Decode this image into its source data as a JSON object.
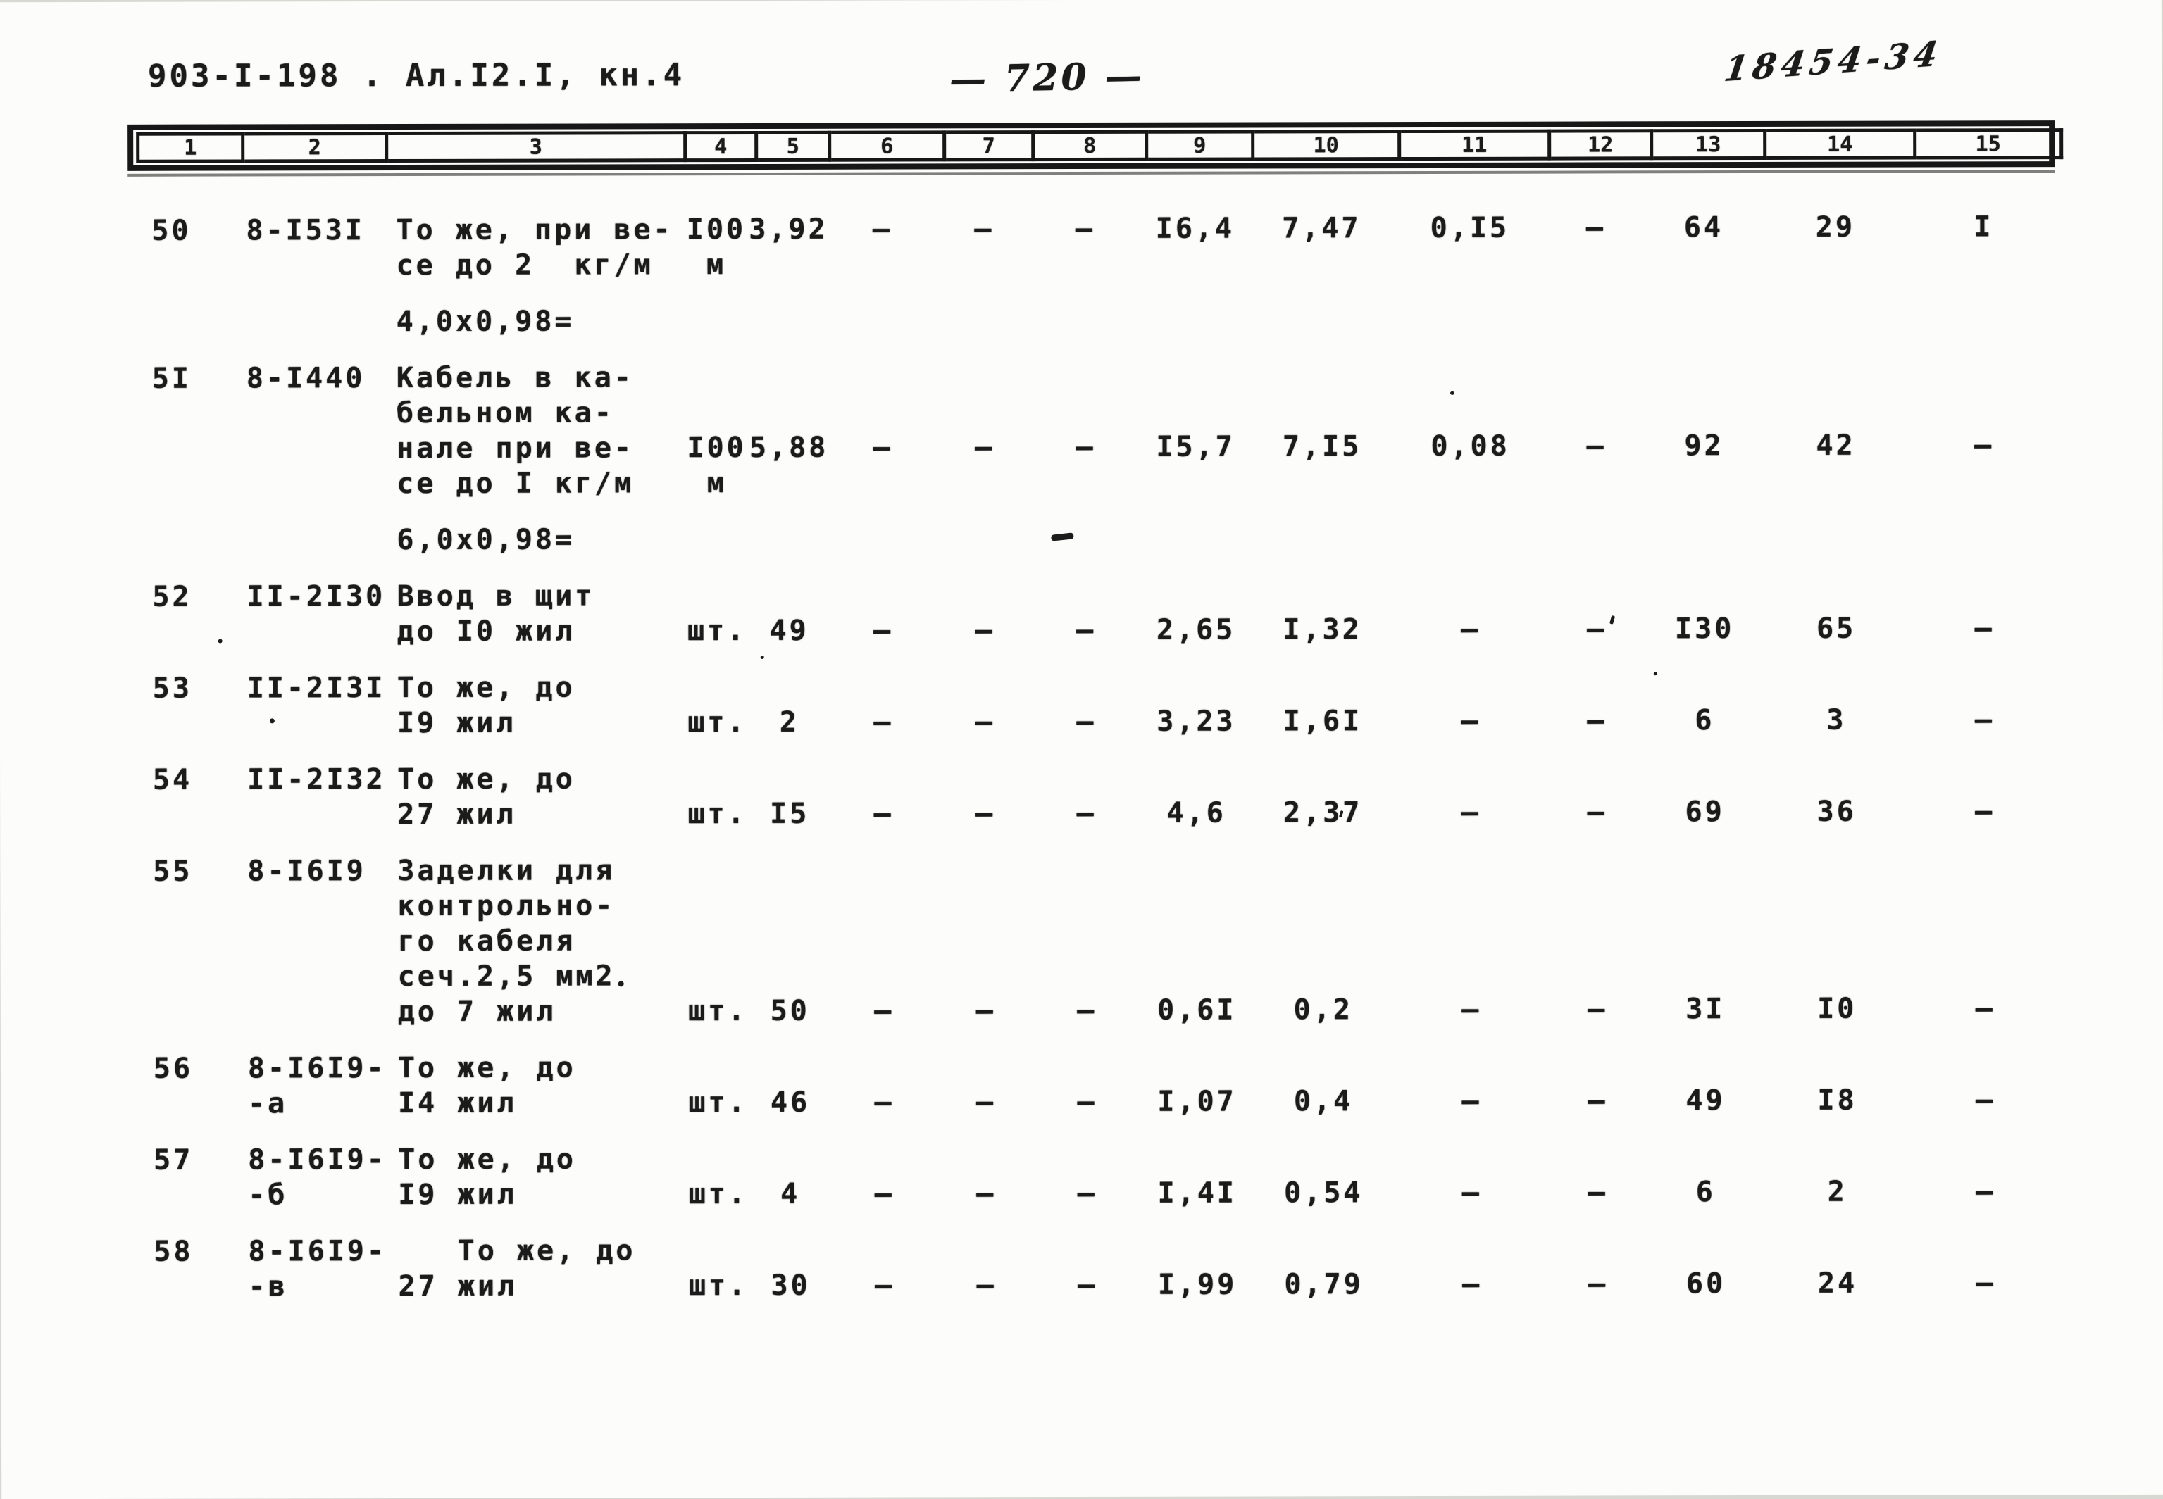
{
  "page": {
    "doc_code": "903-I-198 . Ал.I2.I, кн.4",
    "page_number": "— 720 —",
    "stamp": "18454-34"
  },
  "table": {
    "column_numbers": [
      "1",
      "2",
      "3",
      "4",
      "5",
      "6",
      "7",
      "8",
      "9",
      "10",
      "11",
      "12",
      "13",
      "14",
      "15"
    ],
    "lines": [
      {
        "c1": "50",
        "c2": "8-I53I",
        "c3": "То же, при ве-",
        "c4": "I00",
        "c5": "3,92",
        "c6": "–",
        "c7": "–",
        "c8": "–",
        "c9": "I6,4",
        "c10": "7,47",
        "c11": "0,I5",
        "c12": "–",
        "c13": "64",
        "c14": "29",
        "c15": "I"
      },
      {
        "c3": "се до 2  кг/м",
        "c4": "м"
      },
      {
        "gap": true,
        "c3": "4,0x0,98="
      },
      {
        "gap": true,
        "c1": "5I",
        "c2": "8-I440",
        "c3": "Кабель в ка-"
      },
      {
        "c3": "бельном ка-"
      },
      {
        "c3": "нале при ве-",
        "c4": "I00",
        "c5": "5,88",
        "c6": "–",
        "c7": "–",
        "c8": "–",
        "c9": "I5,7",
        "c10": "7,I5",
        "c11": "0,08",
        "c12": "–",
        "c13": "92",
        "c14": "42",
        "c15": "–"
      },
      {
        "c3": "се до I кг/м",
        "c4": "м"
      },
      {
        "gap": true,
        "c3": "6,0x0,98="
      },
      {
        "gap": true,
        "c1": "52",
        "c2": "II-2I30",
        "c3": "Ввод в щит"
      },
      {
        "c3": "до I0 жил",
        "c4": "шт.",
        "c5": "49",
        "c6": "–",
        "c7": "–",
        "c8": "–",
        "c9": "2,65",
        "c10": "I,32",
        "c11": "–",
        "c12": "–",
        "c13": "I30",
        "c14": "65",
        "c15": "–"
      },
      {
        "gap": true,
        "c1": "53",
        "c2": "II-2I3I",
        "c3": "То же, до"
      },
      {
        "c3": "I9 жил",
        "c4": "шт.",
        "c5": "2",
        "c6": "–",
        "c7": "–",
        "c8": "–",
        "c9": "3,23",
        "c10": "I,6I",
        "c11": "–",
        "c12": "–",
        "c13": "6",
        "c14": "3",
        "c15": "–"
      },
      {
        "gap": true,
        "c1": "54",
        "c2": "II-2I32",
        "c3": "То же, до"
      },
      {
        "c3": "27 жил",
        "c4": "шт.",
        "c5": "I5",
        "c6": "–",
        "c7": "–",
        "c8": "–",
        "c9": "4,6",
        "c10": "2,37",
        "c11": "–",
        "c12": "–",
        "c13": "69",
        "c14": "36",
        "c15": "–"
      },
      {
        "gap": true,
        "c1": "55",
        "c2": "8-I6I9",
        "c3": "Заделки для"
      },
      {
        "c3": "контрольно-"
      },
      {
        "c3": "го кабеля"
      },
      {
        "c3": "сеч.2,5 мм2"
      },
      {
        "c3": "до 7 жил",
        "c4": "шт.",
        "c5": "50",
        "c6": "–",
        "c7": "–",
        "c8": "–",
        "c9": "0,6I",
        "c10": "0,2",
        "c11": "–",
        "c12": "–",
        "c13": "3I",
        "c14": "I0",
        "c15": "–"
      },
      {
        "gap": true,
        "c1": "56",
        "c2": "8-I6I9-",
        "c3": "То же, до"
      },
      {
        "c2": "-а",
        "c3": "I4 жил",
        "c4": "шт.",
        "c5": "46",
        "c6": "–",
        "c7": "–",
        "c8": "–",
        "c9": "I,07",
        "c10": "0,4",
        "c11": "–",
        "c12": "–",
        "c13": "49",
        "c14": "I8",
        "c15": "–"
      },
      {
        "gap": true,
        "c1": "57",
        "c2": "8-I6I9-",
        "c3": "То же, до"
      },
      {
        "c2": "-б",
        "c3": "I9 жил",
        "c4": "шт.",
        "c5": "4",
        "c6": "–",
        "c7": "–",
        "c8": "–",
        "c9": "I,4I",
        "c10": "0,54",
        "c11": "–",
        "c12": "–",
        "c13": "6",
        "c14": "2",
        "c15": "–"
      },
      {
        "gap": true,
        "c1": "58",
        "c2": "8-I6I9-",
        "c3": "   То же, до"
      },
      {
        "c2": "-в",
        "c3": "27 жил",
        "c4": "шт.",
        "c5": "30",
        "c6": "–",
        "c7": "–",
        "c8": "–",
        "c9": "I,99",
        "c10": "0,79",
        "c11": "–",
        "c12": "–",
        "c13": "60",
        "c14": "24",
        "c15": "–"
      }
    ]
  }
}
